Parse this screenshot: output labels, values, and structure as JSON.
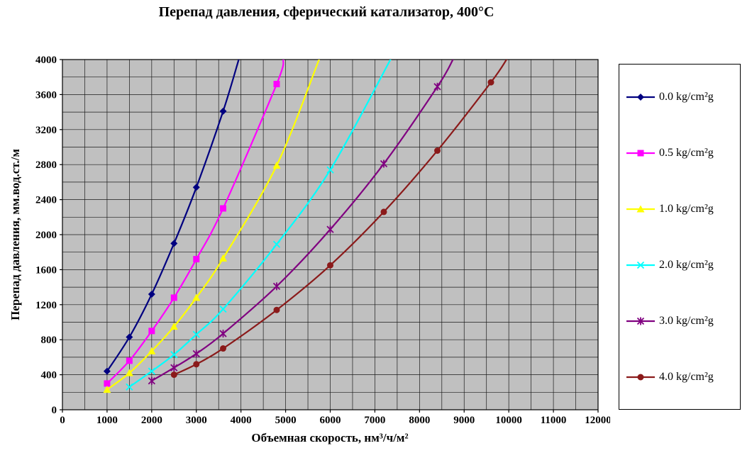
{
  "title": "Перепад давления, сферический катализатор, 400°С",
  "chart_data": {
    "type": "line",
    "title": "Перепад давления, сферический катализатор, 400°С",
    "xlabel": "Объемная скорость, нм³/ч/м²",
    "ylabel": "Перепад давления, мм.вод.ст./м",
    "xlim": [
      0,
      12000
    ],
    "ylim": [
      0,
      4000
    ],
    "x_tick_labels": [
      "0",
      "1000",
      "2000",
      "3000",
      "4000",
      "5000",
      "6000",
      "7000",
      "8000",
      "9000",
      "10000",
      "11000",
      "12000"
    ],
    "y_tick_labels": [
      "0",
      "400",
      "800",
      "1200",
      "1600",
      "2000",
      "2400",
      "2800",
      "3200",
      "3600",
      "4000"
    ],
    "x_grid_step": 500,
    "y_grid_step": 200,
    "grid": true,
    "plot_bg_color": "#c0c0c0",
    "grid_color": "#1a1a1a",
    "legend_position": "right",
    "series": [
      {
        "name": "0.0 kg/cm²g",
        "color": "#000080",
        "marker": "diamond",
        "points": [
          [
            1000,
            440
          ],
          [
            1500,
            830
          ],
          [
            2000,
            1320
          ],
          [
            2500,
            1900
          ],
          [
            3000,
            2540
          ],
          [
            3600,
            3410
          ]
        ],
        "top_x": 3950
      },
      {
        "name": "0.5 kg/cm²g",
        "color": "#ff00ff",
        "marker": "square",
        "points": [
          [
            1000,
            300
          ],
          [
            1500,
            560
          ],
          [
            2000,
            900
          ],
          [
            2500,
            1280
          ],
          [
            3000,
            1720
          ],
          [
            3600,
            2300
          ],
          [
            4800,
            3720
          ]
        ],
        "top_x": 4950
      },
      {
        "name": "1.0 kg/cm²g",
        "color": "#ffff00",
        "marker": "triangle",
        "points": [
          [
            1000,
            230
          ],
          [
            1500,
            420
          ],
          [
            2000,
            670
          ],
          [
            2500,
            950
          ],
          [
            3000,
            1280
          ],
          [
            3600,
            1730
          ],
          [
            4800,
            2790
          ]
        ],
        "top_x": 5750
      },
      {
        "name": "2.0 kg/cm²g",
        "color": "#00ffff",
        "marker": "x",
        "points": [
          [
            1500,
            260
          ],
          [
            2000,
            440
          ],
          [
            2500,
            630
          ],
          [
            3000,
            860
          ],
          [
            3600,
            1150
          ],
          [
            4800,
            1890
          ],
          [
            6000,
            2740
          ]
        ],
        "top_x": 7350
      },
      {
        "name": "3.0 kg/cm²g",
        "color": "#800080",
        "marker": "asterisk",
        "points": [
          [
            2000,
            330
          ],
          [
            2500,
            480
          ],
          [
            3000,
            640
          ],
          [
            3600,
            870
          ],
          [
            4800,
            1410
          ],
          [
            6000,
            2060
          ],
          [
            7200,
            2810
          ],
          [
            8400,
            3690
          ]
        ],
        "top_x": 8750
      },
      {
        "name": "4.0 kg/cm²g",
        "color": "#8b1a1a",
        "marker": "circle",
        "points": [
          [
            2500,
            400
          ],
          [
            3000,
            520
          ],
          [
            3600,
            700
          ],
          [
            4800,
            1140
          ],
          [
            6000,
            1650
          ],
          [
            7200,
            2260
          ],
          [
            8400,
            2960
          ],
          [
            9600,
            3740
          ]
        ],
        "top_x": 9950
      }
    ]
  }
}
